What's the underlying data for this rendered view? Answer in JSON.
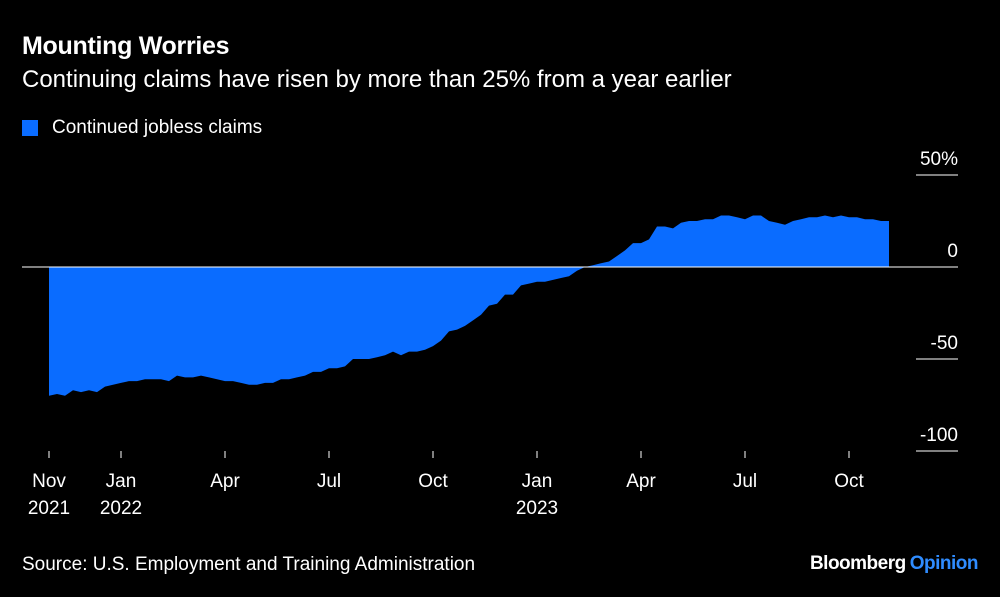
{
  "title": "Mounting Worries",
  "subtitle": "Continuing claims have risen by more than 25% from a year earlier",
  "source": "Source: U.S. Employment and Training Administration",
  "brand": {
    "name": "Bloomberg",
    "suffix": "Opinion"
  },
  "colors": {
    "series": "#0a6cff",
    "background": "#000000",
    "text": "#ffffff"
  },
  "chart_data": {
    "type": "area",
    "title": "Mounting Worries",
    "legend": [
      "Continued jobless claims"
    ],
    "ylim": [
      -100,
      50
    ],
    "yticks": [
      {
        "value": 50,
        "label": "50%"
      },
      {
        "value": 0,
        "label": "0"
      },
      {
        "value": -50,
        "label": "-50"
      },
      {
        "value": -100,
        "label": "-100"
      }
    ],
    "xticks": [
      {
        "week": 0,
        "label": "Nov",
        "label2": "2021"
      },
      {
        "week": 9,
        "label": "Jan",
        "label2": "2022"
      },
      {
        "week": 22,
        "label": "Apr",
        "label2": ""
      },
      {
        "week": 35,
        "label": "Jul",
        "label2": ""
      },
      {
        "week": 48,
        "label": "Oct",
        "label2": ""
      },
      {
        "week": 61,
        "label": "Jan",
        "label2": "2023"
      },
      {
        "week": 74,
        "label": "Apr",
        "label2": ""
      },
      {
        "week": 87,
        "label": "Jul",
        "label2": ""
      },
      {
        "week": 100,
        "label": "Oct",
        "label2": ""
      }
    ],
    "series": [
      {
        "name": "Continued jobless claims",
        "unit": "% change from a year earlier",
        "values": [
          -70,
          -69,
          -70,
          -67,
          -68,
          -67,
          -68,
          -65,
          -64,
          -63,
          -62,
          -62,
          -61,
          -61,
          -61,
          -62,
          -59,
          -60,
          -60,
          -59,
          -60,
          -61,
          -62,
          -62,
          -63,
          -64,
          -64,
          -63,
          -63,
          -61,
          -61,
          -60,
          -59,
          -57,
          -57,
          -55,
          -55,
          -54,
          -50,
          -50,
          -50,
          -49,
          -48,
          -46,
          -48,
          -46,
          -46,
          -45,
          -43,
          -40,
          -35,
          -34,
          -32,
          -29,
          -26,
          -21,
          -20,
          -15,
          -15,
          -10,
          -9,
          -8,
          -8,
          -7,
          -6,
          -5,
          -2,
          0,
          1,
          2,
          3,
          6,
          9,
          13,
          13,
          15,
          22,
          22,
          21,
          24,
          25,
          25,
          26,
          26,
          28,
          28,
          27,
          26,
          28,
          28,
          25,
          24,
          23,
          25,
          26,
          27,
          27,
          28,
          27,
          28,
          27,
          27,
          26,
          26,
          25,
          25
        ]
      }
    ]
  }
}
